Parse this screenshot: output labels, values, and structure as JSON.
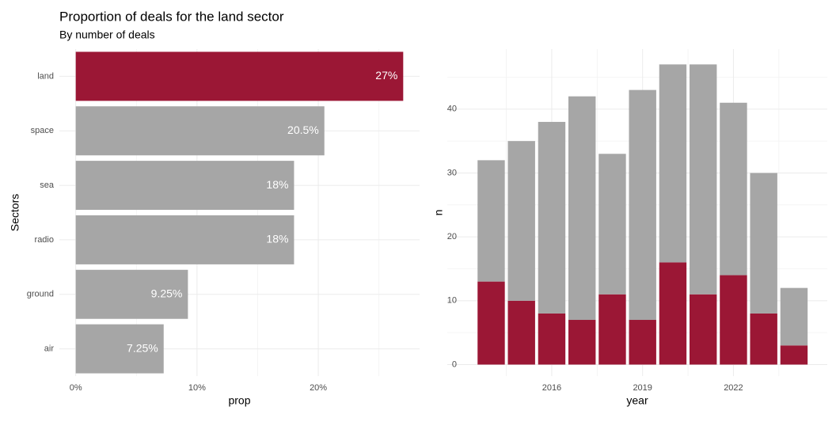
{
  "chart_data": [
    {
      "type": "bar",
      "orientation": "horizontal",
      "title": "Proportion of deals for the land sector",
      "subtitle": "By number of deals",
      "x_label": "prop",
      "y_label": "Sectors",
      "categories": [
        "land",
        "space",
        "sea",
        "radio",
        "ground",
        "air"
      ],
      "values": [
        27,
        20.5,
        18,
        18,
        9.25,
        7.25
      ],
      "value_labels": [
        "27%",
        "20.5%",
        "18%",
        "18%",
        "9.25%",
        "7.25%"
      ],
      "colors": [
        "#9b1735",
        "#a6a6a6",
        "#a6a6a6",
        "#a6a6a6",
        "#a6a6a6",
        "#a6a6a6"
      ],
      "xlim": [
        -1.35,
        28.35
      ],
      "xticks": [
        {
          "value": 0,
          "label": "0%"
        },
        {
          "value": 10,
          "label": "10%"
        },
        {
          "value": 20,
          "label": "20%"
        }
      ],
      "xminor": [
        5,
        15,
        25
      ],
      "grid": true
    },
    {
      "type": "bar",
      "stacked": true,
      "x_label": "year",
      "y_label": "n",
      "x": [
        2014,
        2015,
        2016,
        2017,
        2018,
        2019,
        2020,
        2021,
        2022,
        2023,
        2024
      ],
      "series": [
        {
          "color": "#9b1735",
          "show_labels": true,
          "values": [
            13,
            10,
            8,
            7,
            11,
            7,
            16,
            11,
            14,
            8,
            3
          ]
        },
        {
          "color": "#a6a6a6",
          "values": [
            19,
            25,
            30,
            35,
            22,
            36,
            31,
            36,
            27,
            22,
            9
          ]
        }
      ],
      "xlim": [
        2012.55,
        2025.1
      ],
      "xticks": [
        2016,
        2019,
        2022
      ],
      "xminor": [
        2014.5,
        2017.5,
        2020.5,
        2023.5
      ],
      "ylim": [
        -1.8,
        49.4
      ],
      "yticks": [
        0,
        10,
        20,
        30,
        40
      ],
      "yminor": [
        5,
        15,
        25,
        35,
        45
      ],
      "grid": true
    }
  ]
}
